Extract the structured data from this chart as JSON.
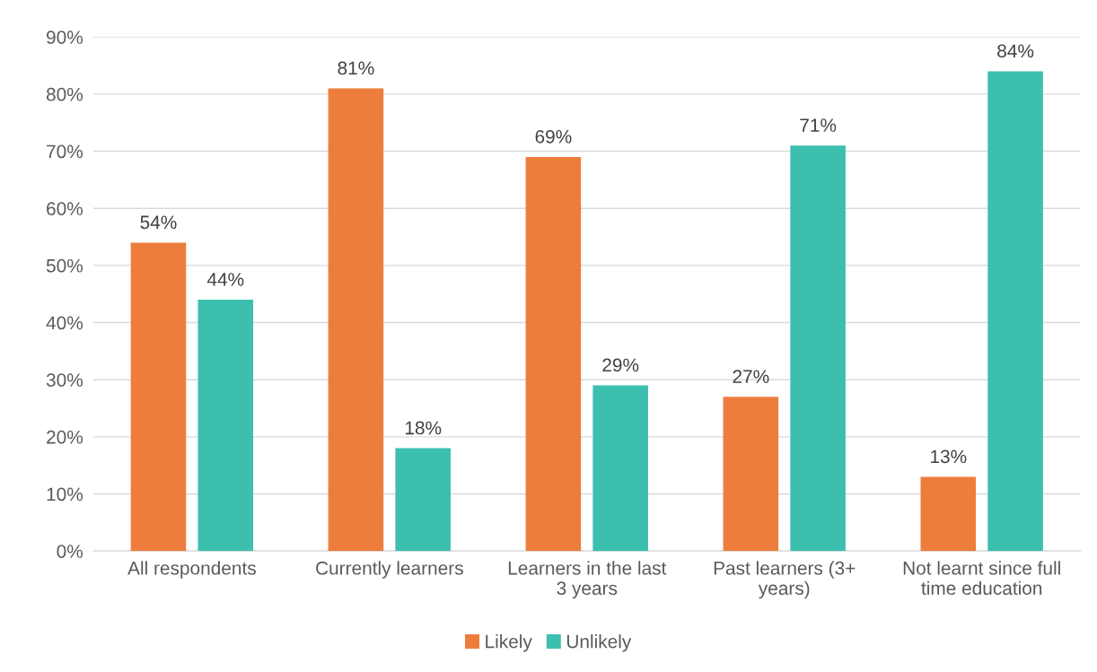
{
  "chart_data": {
    "type": "bar",
    "categories": [
      "All respondents",
      "Currently learners",
      "Learners in the last\n3 years",
      "Past learners (3+\nyears)",
      "Not learnt since full\ntime education"
    ],
    "series": [
      {
        "name": "Likely",
        "color": "#ed7d3c",
        "values": [
          54,
          81,
          69,
          27,
          13
        ],
        "value_labels": [
          "54%",
          "81%",
          "69%",
          "27%",
          "13%"
        ]
      },
      {
        "name": "Unlikely",
        "color": "#3dbfb0",
        "values": [
          44,
          18,
          29,
          71,
          84
        ],
        "value_labels": [
          "44%",
          "18%",
          "29%",
          "71%",
          "84%"
        ]
      }
    ],
    "ylim": [
      0,
      90
    ],
    "yticks": [
      {
        "value": 0,
        "label": "0%"
      },
      {
        "value": 10,
        "label": "10%"
      },
      {
        "value": 20,
        "label": "20%"
      },
      {
        "value": 30,
        "label": "30%"
      },
      {
        "value": 40,
        "label": "40%"
      },
      {
        "value": 50,
        "label": "50%"
      },
      {
        "value": 60,
        "label": "60%"
      },
      {
        "value": 70,
        "label": "70%"
      },
      {
        "value": 80,
        "label": "80%"
      },
      {
        "value": 90,
        "label": "90%"
      }
    ],
    "grid": "y",
    "legend": "bottom"
  }
}
